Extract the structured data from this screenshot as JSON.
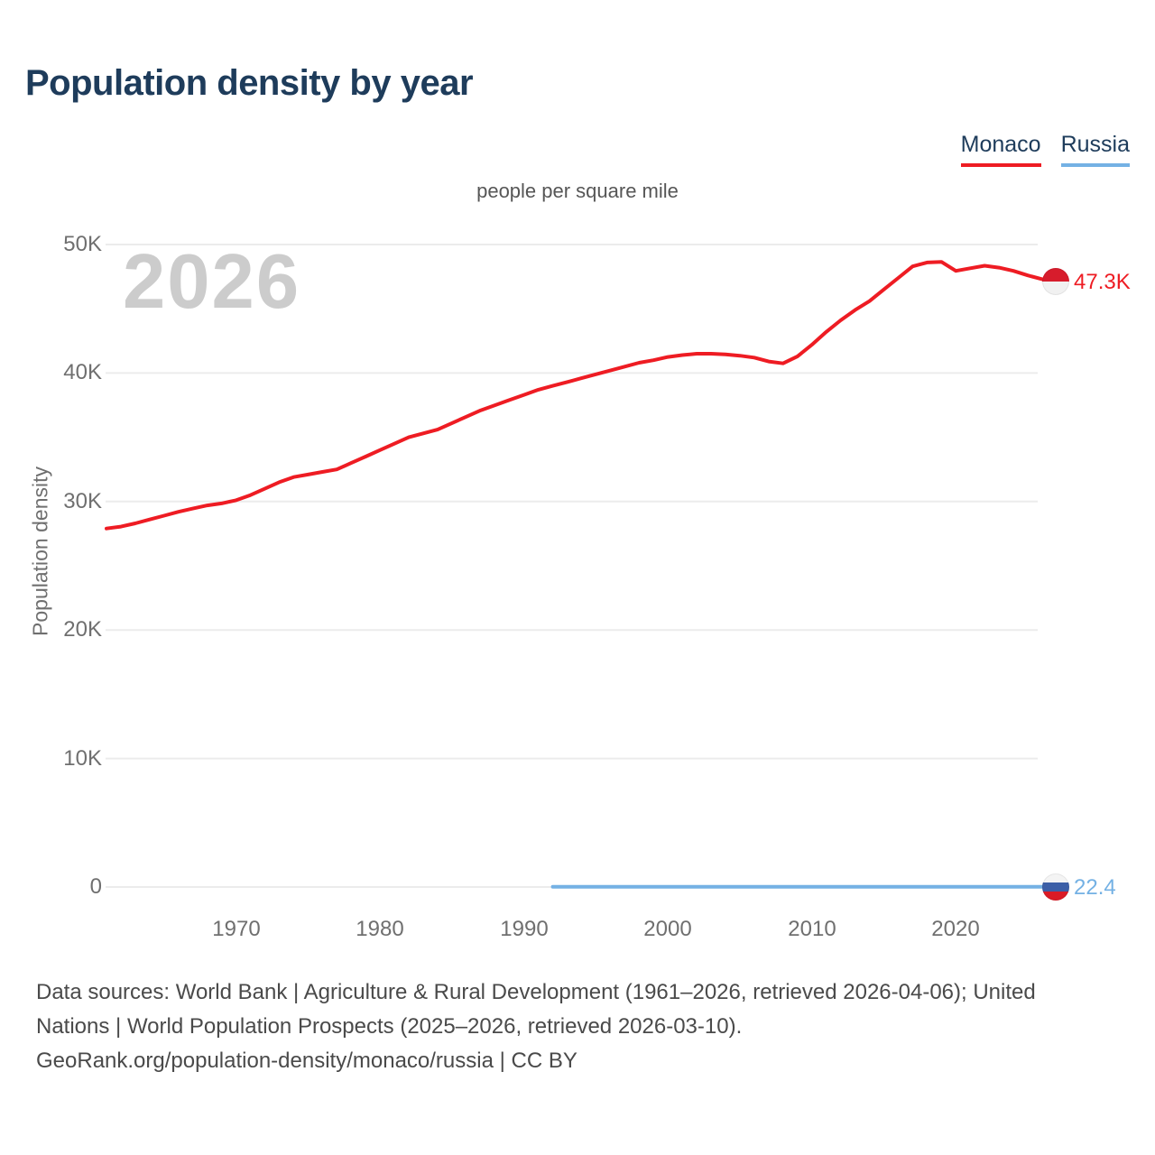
{
  "header": {
    "title": "Population density by year"
  },
  "chart": {
    "watermark_year": "2026",
    "y_tick_labels": [
      "50K",
      "40K",
      "30K",
      "20K",
      "10K",
      "0"
    ],
    "x_tick_labels": [
      "1970",
      "1980",
      "1990",
      "2000",
      "2010",
      "2020"
    ]
  },
  "chart_data": {
    "type": "line",
    "title": "Population density by year",
    "subtitle": "people per square mile",
    "ylabel": "Population density",
    "unit": "people per square mile",
    "xlim": [
      1961,
      2026
    ],
    "ylim": [
      0,
      50000
    ],
    "grid": "horizontal",
    "legend_position": "top-right",
    "y_tick_values": [
      50000,
      40000,
      30000,
      20000,
      10000,
      0
    ],
    "x_tick_values": [
      1970,
      1980,
      1990,
      2000,
      2010,
      2020
    ],
    "series": [
      {
        "name": "Monaco",
        "color": "#ee1c23",
        "end_label": "47.3K",
        "end_value": 47300,
        "x": [
          1961,
          1962,
          1963,
          1964,
          1965,
          1966,
          1967,
          1968,
          1969,
          1970,
          1971,
          1972,
          1973,
          1974,
          1975,
          1976,
          1977,
          1978,
          1979,
          1980,
          1981,
          1982,
          1983,
          1984,
          1985,
          1986,
          1987,
          1988,
          1989,
          1990,
          1991,
          1992,
          1993,
          1994,
          1995,
          1996,
          1997,
          1998,
          1999,
          2000,
          2001,
          2002,
          2003,
          2004,
          2005,
          2006,
          2007,
          2008,
          2009,
          2010,
          2011,
          2012,
          2013,
          2014,
          2015,
          2016,
          2017,
          2018,
          2019,
          2020,
          2021,
          2022,
          2023,
          2024,
          2025,
          2026
        ],
        "y": [
          27900,
          28050,
          28300,
          28600,
          28900,
          29200,
          29450,
          29700,
          29850,
          30100,
          30500,
          31000,
          31500,
          31900,
          32100,
          32300,
          32500,
          33000,
          33500,
          34000,
          34500,
          35000,
          35300,
          35600,
          36100,
          36600,
          37100,
          37500,
          37900,
          38300,
          38700,
          39000,
          39300,
          39600,
          39900,
          40200,
          40500,
          40800,
          41000,
          41250,
          41400,
          41500,
          41500,
          41450,
          41350,
          41200,
          40900,
          40750,
          41300,
          42200,
          43200,
          44100,
          44900,
          45600,
          46500,
          47400,
          48300,
          48600,
          48650,
          47950,
          48150,
          48350,
          48200,
          47950,
          47600,
          47300
        ]
      },
      {
        "name": "Russia",
        "color": "#74b1e4",
        "end_label": "22.4",
        "end_value": 22.4,
        "x": [
          1992,
          1993,
          1994,
          1995,
          1996,
          1997,
          1998,
          1999,
          2000,
          2001,
          2002,
          2003,
          2004,
          2005,
          2006,
          2007,
          2008,
          2009,
          2010,
          2011,
          2012,
          2013,
          2014,
          2015,
          2016,
          2017,
          2018,
          2019,
          2020,
          2021,
          2022,
          2023,
          2024,
          2025,
          2026
        ],
        "y": [
          22.4,
          22.4,
          22.4,
          22.4,
          22.4,
          22.4,
          22.4,
          22.4,
          22.4,
          22.4,
          22.4,
          22.4,
          22.4,
          22.4,
          22.4,
          22.4,
          22.4,
          22.4,
          22.4,
          22.4,
          22.4,
          22.4,
          22.4,
          22.4,
          22.4,
          22.4,
          22.4,
          22.4,
          22.4,
          22.4,
          22.4,
          22.4,
          22.4,
          22.4,
          22.4
        ]
      }
    ]
  },
  "footer": {
    "lines": [
      "Data sources: World Bank | Agriculture & Rural Development (1961–2026, retrieved 2026-04-06); United",
      "Nations | World Population Prospects (2025–2026, retrieved 2026-03-10).",
      "GeoRank.org/population-density/monaco/russia | CC BY"
    ]
  }
}
